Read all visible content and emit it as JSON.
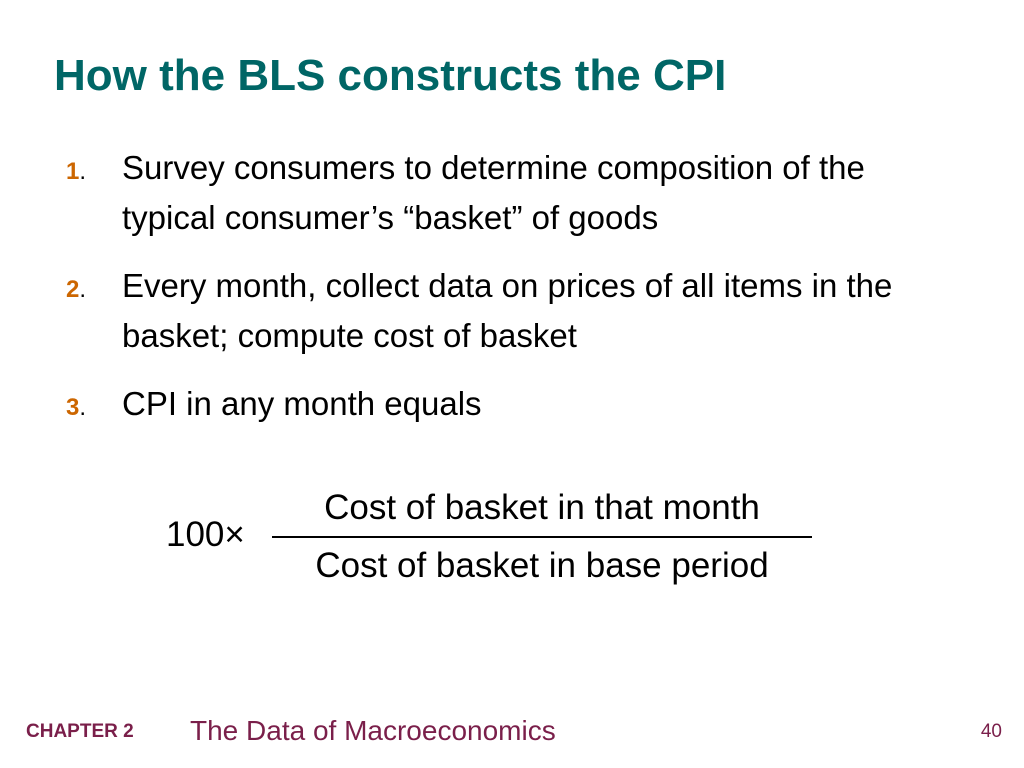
{
  "colors": {
    "title": "#006666",
    "number": "#cc6600",
    "footer": "#7a1f4a",
    "text": "#000000"
  },
  "slide": {
    "title": "How the BLS constructs the CPI",
    "items": [
      {
        "number": "1",
        "text": "Survey consumers to determine composition of the typical consumer’s “basket” of goods"
      },
      {
        "number": "2",
        "text": "Every month, collect data on prices of all items in the basket; compute cost of basket"
      },
      {
        "number": "3",
        "text": "CPI in any month equals"
      }
    ],
    "formula": {
      "prefix": "100",
      "operator": "×",
      "numerator": "Cost of basket in that month",
      "denominator": "Cost of basket in base period"
    }
  },
  "footer": {
    "chapter_label": "CHAPTER 2",
    "chapter_title": "The Data of Macroeconomics",
    "page_number": "40"
  }
}
